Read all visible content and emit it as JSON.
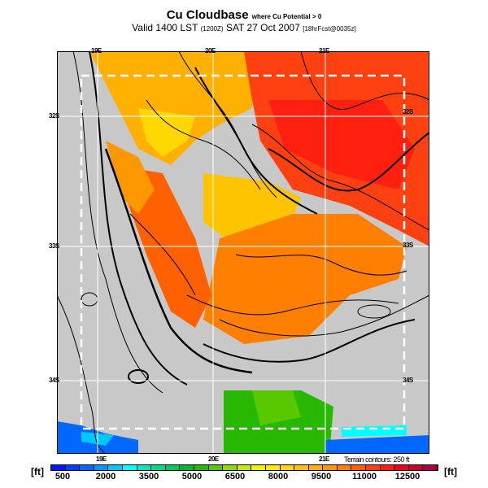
{
  "title": {
    "main": "Cu Cloudbase",
    "qualifier": "where Cu Potential > 0",
    "valid": "Valid 1400 LST",
    "zone": "(1200Z)",
    "date": "SAT 27 Oct 2007",
    "run": "[18hrFcst@0035z]"
  },
  "map": {
    "lon_labels_top": [
      "19E",
      "20E",
      "21E"
    ],
    "lon_labels_bottom": [
      "19E",
      "20E",
      "21E"
    ],
    "lat_labels_left": [
      "32S",
      "33S",
      "34S"
    ],
    "lat_labels_right": [
      "32S",
      "33S",
      "34S"
    ],
    "terrain_note": "Terrain contours: 250 ft",
    "colors": {
      "no_cloud": "#c8c8c8",
      "grid": "#ffffff"
    }
  },
  "colorbar": {
    "unit": "[ft]",
    "labels": [
      "500",
      "2000",
      "3500",
      "5000",
      "6500",
      "8000",
      "9500",
      "11000",
      "12500"
    ],
    "colors": [
      "#0018f0",
      "#0040ff",
      "#0068ff",
      "#0098ff",
      "#00c8ff",
      "#00ffff",
      "#00e8c0",
      "#00d890",
      "#00c860",
      "#00b830",
      "#28b800",
      "#58c800",
      "#90d800",
      "#c8e800",
      "#f0f000",
      "#ffe800",
      "#ffd800",
      "#ffc400",
      "#ffb000",
      "#ff9800",
      "#ff8000",
      "#ff6000",
      "#ff4010",
      "#ff2010",
      "#e80020",
      "#c80030",
      "#a80048"
    ]
  }
}
